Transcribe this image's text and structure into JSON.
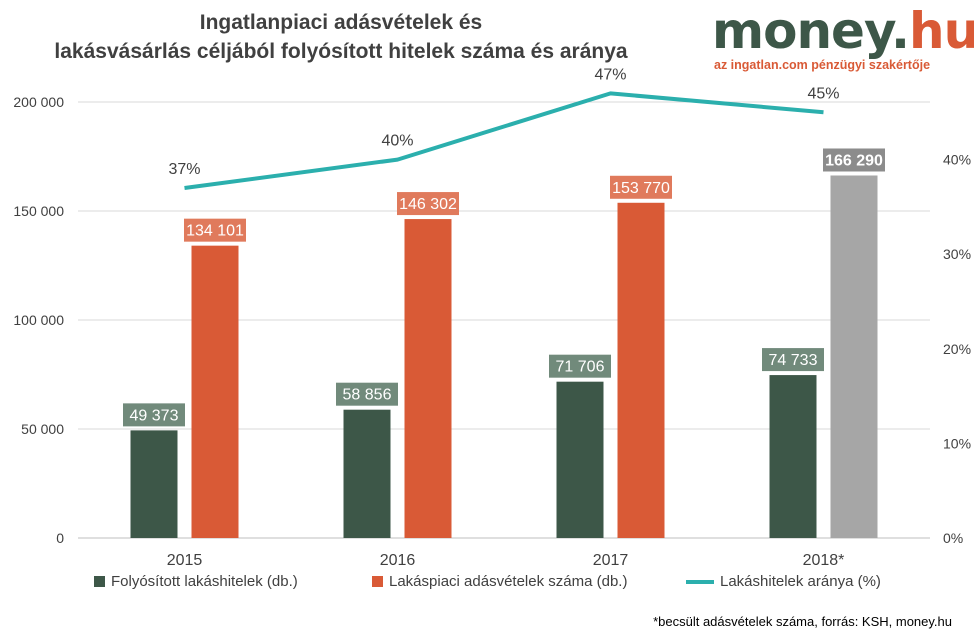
{
  "header": {
    "title_line1": "Ingatlanpiaci adásvételek és",
    "title_line2": "lakásvásárlás céljából folyósított hitelek száma és aránya"
  },
  "logo": {
    "main_dark": "money.",
    "main_accent": "hu",
    "tagline": "az ingatlan.com pénzügyi szakértője"
  },
  "footnote": "*becsült adásvételek száma, forrás: KSH, money.hu",
  "colors": {
    "loans": "#3d5748",
    "sales": "#d95a36",
    "sales_estimated": "#a6a6a6",
    "ratio_line": "#2bafad",
    "axis_text": "#404040",
    "grid": "#d9d9d9"
  },
  "chart_data": {
    "type": "bar",
    "categories": [
      "2015",
      "2016",
      "2017",
      "2018*"
    ],
    "series": [
      {
        "name": "Folyósított lakáshitelek (db.)",
        "type": "bar",
        "axis": "left",
        "values": [
          49373,
          58856,
          71706,
          74733
        ],
        "labels": [
          "49 373",
          "58 856",
          "71 706",
          "74 733"
        ]
      },
      {
        "name": "Lakáspiaci adásvételek száma (db.)",
        "type": "bar",
        "axis": "left",
        "values": [
          134101,
          146302,
          153770,
          166290
        ],
        "labels": [
          "134 101",
          "146 302",
          "153 770",
          "166 290"
        ],
        "estimated_index": 3
      },
      {
        "name": "Lakáshitelek aránya (%)",
        "type": "line",
        "axis": "right",
        "values": [
          37,
          40,
          47,
          45
        ],
        "labels": [
          "37%",
          "40%",
          "47%",
          "45%"
        ]
      }
    ],
    "left_axis": {
      "ylim": [
        0,
        200000
      ],
      "ticks": [
        0,
        50000,
        100000,
        150000,
        200000
      ],
      "tick_labels": [
        "0",
        "50 000",
        "100 000",
        "150 000",
        "200 000"
      ]
    },
    "right_axis": {
      "ylim": [
        0,
        50
      ],
      "ticks": [
        0,
        10,
        20,
        30,
        40
      ],
      "tick_labels": [
        "0%",
        "10%",
        "20%",
        "30%",
        "40%"
      ]
    },
    "grid": true,
    "legend_position": "bottom"
  }
}
